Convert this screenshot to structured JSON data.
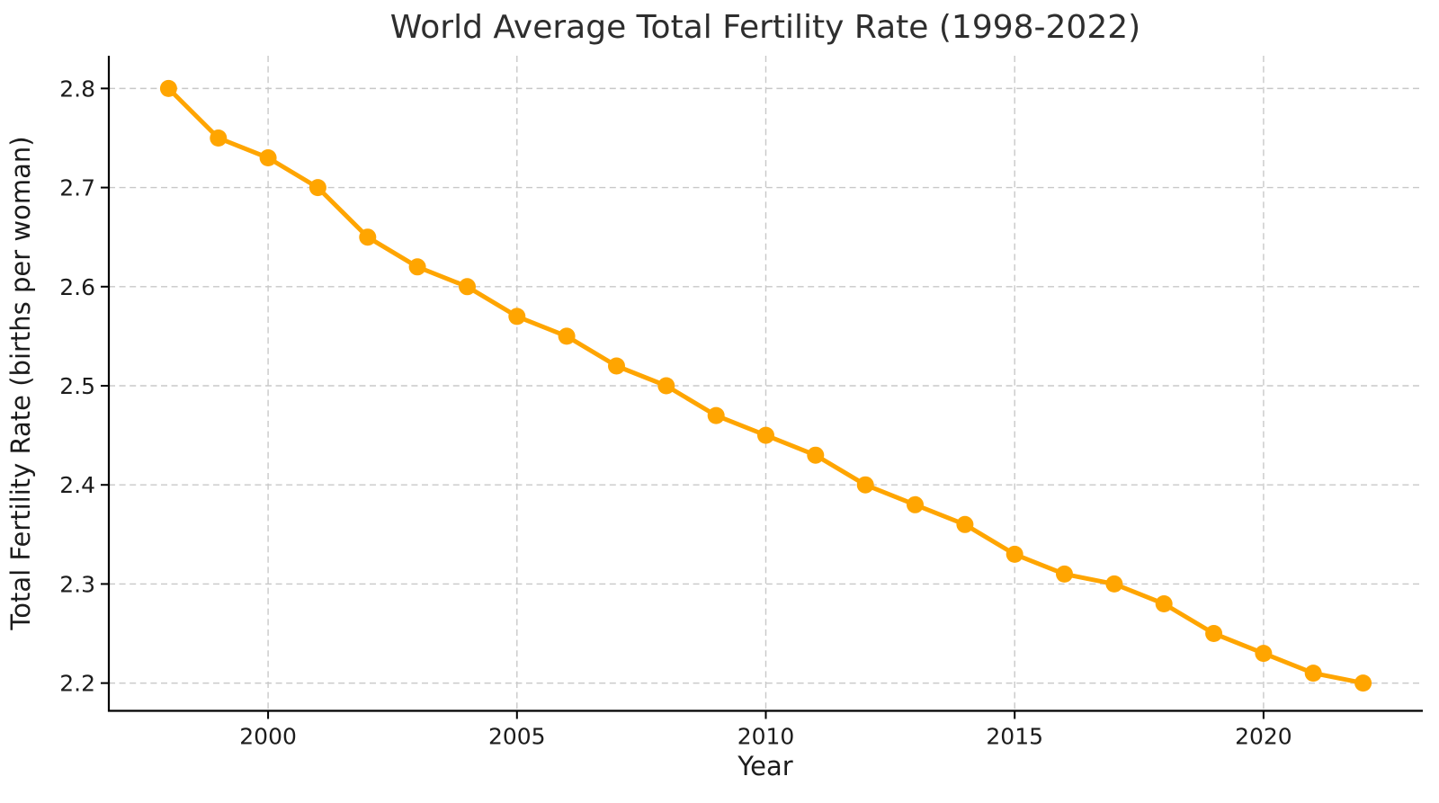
{
  "chart_data": {
    "type": "line",
    "title": "World Average Total Fertility Rate (1998-2022)",
    "xlabel": "Year",
    "ylabel": "Total Fertility Rate (births per woman)",
    "x": [
      1998,
      1999,
      2000,
      2001,
      2002,
      2003,
      2004,
      2005,
      2006,
      2007,
      2008,
      2009,
      2010,
      2011,
      2012,
      2013,
      2014,
      2015,
      2016,
      2017,
      2018,
      2019,
      2020,
      2021,
      2022
    ],
    "series": [
      {
        "name": "World Average Total Fertility Rate",
        "values": [
          2.8,
          2.75,
          2.73,
          2.7,
          2.65,
          2.62,
          2.6,
          2.57,
          2.55,
          2.52,
          2.5,
          2.47,
          2.45,
          2.43,
          2.4,
          2.38,
          2.36,
          2.33,
          2.31,
          2.3,
          2.28,
          2.25,
          2.23,
          2.21,
          2.2
        ],
        "line_color": "#FFA500",
        "marker": "circle"
      }
    ],
    "xticks": {
      "values": [
        2000,
        2005,
        2010,
        2015,
        2020
      ],
      "labels": [
        "2000",
        "2005",
        "2010",
        "2015",
        "2020"
      ]
    },
    "yticks": {
      "values": [
        2.2,
        2.3,
        2.4,
        2.5,
        2.6,
        2.7,
        2.8
      ],
      "labels": [
        "2.2",
        "2.3",
        "2.4",
        "2.5",
        "2.6",
        "2.7",
        "2.8"
      ]
    },
    "xlim": [
      1996.8,
      2023.2
    ],
    "ylim": [
      2.172,
      2.833
    ],
    "grid": true,
    "grid_style": "dashed",
    "grid_color": "#c8c8c8",
    "legend": null,
    "background": "#ffffff",
    "text_color": "#1c1c1c"
  }
}
